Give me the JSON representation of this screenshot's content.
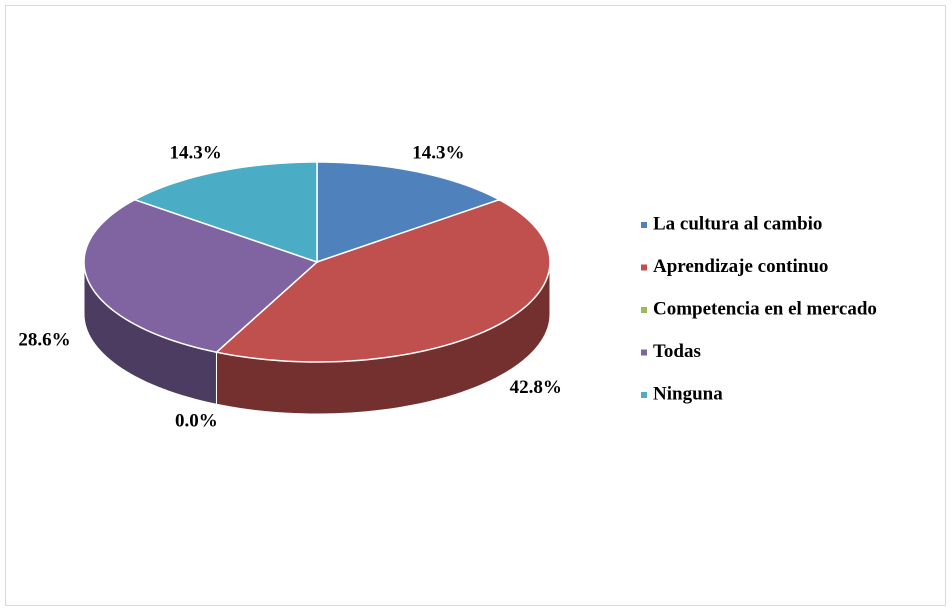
{
  "chart_data": {
    "type": "pie",
    "categories": [
      "La cultura al cambio",
      "Aprendizaje continuo",
      "Competencia en el mercado",
      "Todas",
      "Ninguna"
    ],
    "values": [
      14.3,
      42.8,
      0.0,
      28.6,
      14.3
    ],
    "value_labels": [
      "14.3%",
      "42.8%",
      "0.0%",
      "28.6%",
      "14.3%"
    ],
    "colors": [
      "#4f81bd",
      "#c0504d",
      "#9bbb59",
      "#8064a2",
      "#4bacc6"
    ],
    "legend": "right"
  }
}
